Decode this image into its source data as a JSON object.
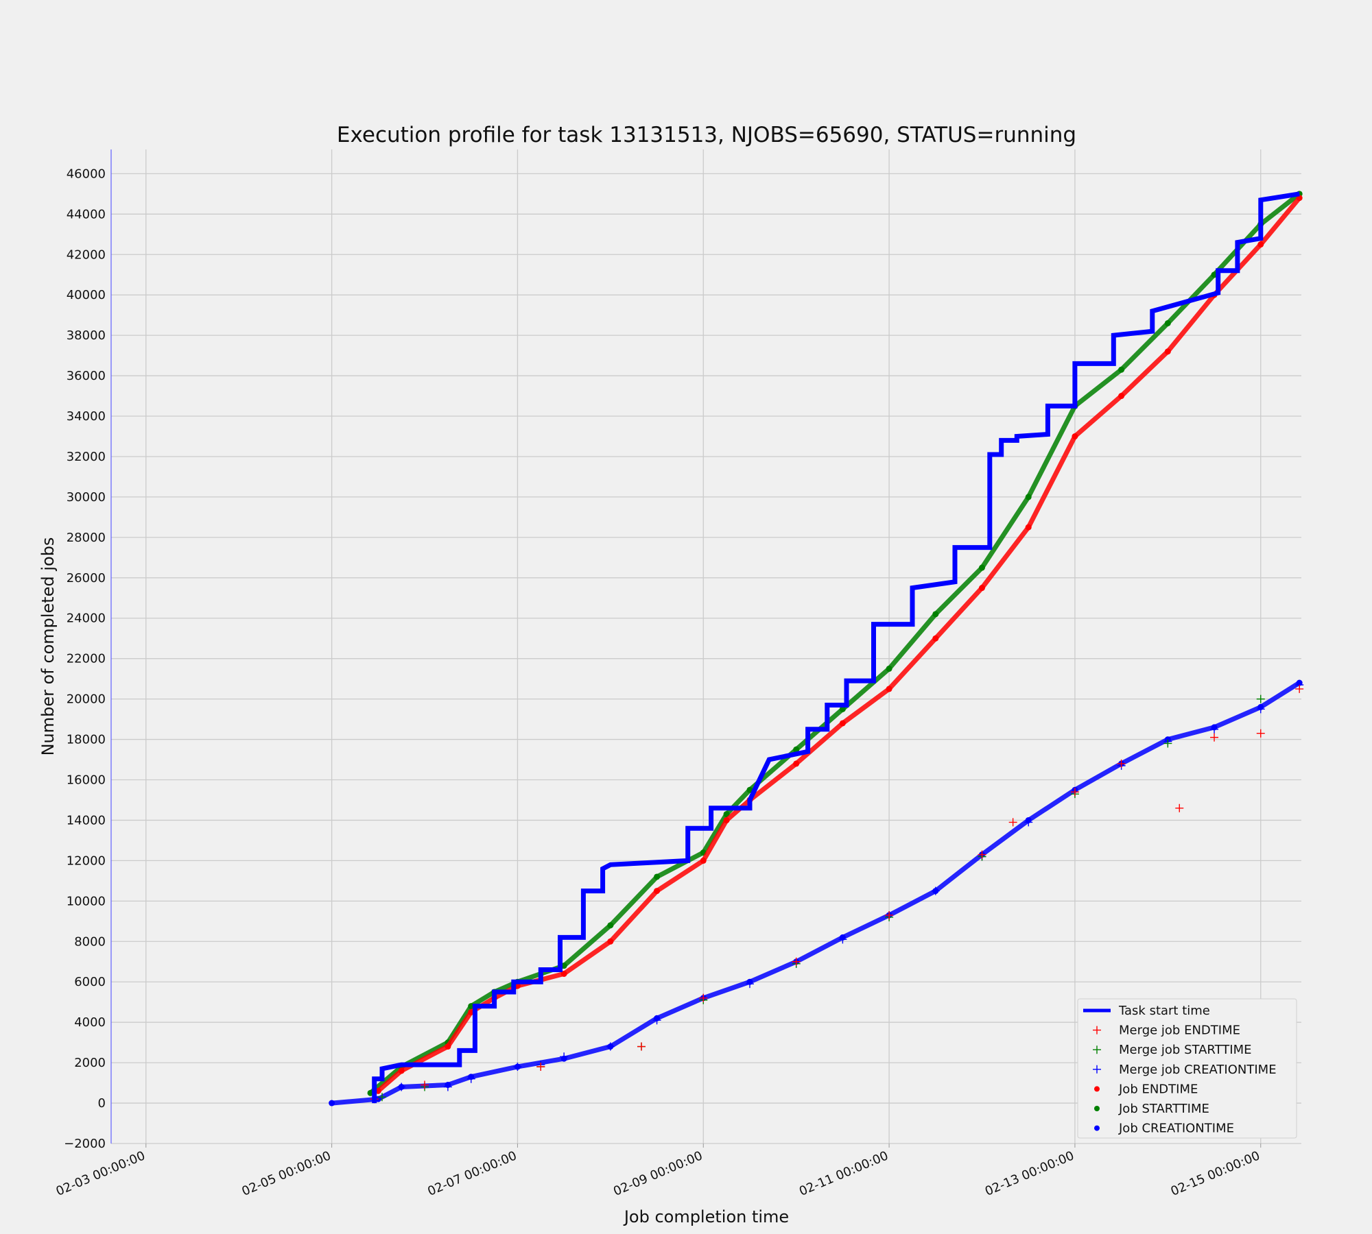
{
  "chart_data": {
    "type": "scatter",
    "title": "Execution profile for task 13131513, NJOBS=65690, STATUS=running",
    "xlabel": "Job completion time",
    "ylabel": "Number of completed jobs",
    "x_axis_type": "date",
    "xlim": [
      "2019-02-02 15:00",
      "2019-02-15 10:30"
    ],
    "ylim": [
      -2000,
      47200
    ],
    "grid": true,
    "legend_position": "bottom-right",
    "x_ticks": [
      "02-03 00:00:00",
      "02-05 00:00:00",
      "02-07 00:00:00",
      "02-09 00:00:00",
      "02-11 00:00:00",
      "02-13 00:00:00",
      "02-15 00:00:00"
    ],
    "y_ticks": [
      -2000,
      0,
      2000,
      4000,
      6000,
      8000,
      10000,
      12000,
      14000,
      16000,
      18000,
      20000,
      22000,
      24000,
      26000,
      28000,
      30000,
      32000,
      34000,
      36000,
      38000,
      40000,
      42000,
      44000,
      46000
    ],
    "colors": {
      "blue": "#0000ff",
      "red": "#ff0000",
      "green": "#008000"
    },
    "legend": [
      "Task start time",
      "Merge job ENDTIME",
      "Merge job STARTTIME",
      "Merge job CREATIONTIME",
      "Job ENDTIME",
      "Job STARTTIME",
      "Job CREATIONTIME"
    ],
    "series": [
      {
        "name": "Task start time",
        "style": "line",
        "color": "#0000ff",
        "x": [
          "2019-02-05 11:00",
          "2019-02-05 11:00",
          "2019-02-05 13:00",
          "2019-02-05 13:00",
          "2019-02-05 18:00",
          "2019-02-06 09:00",
          "2019-02-06 09:00",
          "2019-02-06 13:00",
          "2019-02-06 13:00",
          "2019-02-06 18:00",
          "2019-02-06 18:00",
          "2019-02-06 23:00",
          "2019-02-06 23:00",
          "2019-02-07 06:00",
          "2019-02-07 06:00",
          "2019-02-07 11:00",
          "2019-02-07 11:00",
          "2019-02-07 17:00",
          "2019-02-07 17:00",
          "2019-02-07 22:00",
          "2019-02-07 22:00",
          "2019-02-08 00:00",
          "2019-02-08 20:00",
          "2019-02-08 20:00",
          "2019-02-09 02:00",
          "2019-02-09 02:00",
          "2019-02-09 12:00",
          "2019-02-09 12:00",
          "2019-02-09 17:00",
          "2019-02-10 03:00",
          "2019-02-10 03:00",
          "2019-02-10 08:00",
          "2019-02-10 08:00",
          "2019-02-10 13:00",
          "2019-02-10 13:00",
          "2019-02-10 20:00",
          "2019-02-10 20:00",
          "2019-02-11 06:00",
          "2019-02-11 06:00",
          "2019-02-11 17:00",
          "2019-02-11 17:00",
          "2019-02-12 02:00",
          "2019-02-12 02:00",
          "2019-02-12 05:00",
          "2019-02-12 05:00",
          "2019-02-12 09:00",
          "2019-02-12 09:00",
          "2019-02-12 17:00",
          "2019-02-12 17:00",
          "2019-02-13 00:00",
          "2019-02-13 00:00",
          "2019-02-13 10:00",
          "2019-02-13 10:00",
          "2019-02-13 20:00",
          "2019-02-13 20:00",
          "2019-02-14 13:00",
          "2019-02-14 13:00",
          "2019-02-14 18:00",
          "2019-02-14 18:00",
          "2019-02-15 00:00",
          "2019-02-15 00:00",
          "2019-02-15 10:00"
        ],
        "y": [
          0,
          1200,
          1200,
          1700,
          1900,
          1900,
          2600,
          2600,
          4800,
          4800,
          5500,
          5500,
          6000,
          6000,
          6600,
          6600,
          8200,
          8200,
          10500,
          10500,
          11600,
          11800,
          12000,
          13600,
          13600,
          14600,
          14600,
          15000,
          17000,
          17400,
          18500,
          18500,
          19700,
          19700,
          20900,
          20900,
          23700,
          23700,
          25500,
          25800,
          27500,
          27500,
          32100,
          32100,
          32800,
          32800,
          33000,
          33100,
          34500,
          34500,
          36600,
          36600,
          38000,
          38200,
          39200,
          40100,
          41200,
          41200,
          42600,
          42800,
          44700,
          45000
        ]
      },
      {
        "name": "Merge job ENDTIME",
        "style": "plus",
        "color": "#ff0000",
        "x": [
          "2019-02-05 11:00",
          "2019-02-06 00:00",
          "2019-02-07 06:00",
          "2019-02-08 08:00",
          "2019-02-09 00:00",
          "2019-02-10 00:00",
          "2019-02-11 00:00",
          "2019-02-12 00:00",
          "2019-02-12 08:00",
          "2019-02-13 00:00",
          "2019-02-13 12:00",
          "2019-02-14 03:00",
          "2019-02-14 12:00",
          "2019-02-15 00:00",
          "2019-02-15 10:00"
        ],
        "y": [
          200,
          900,
          1800,
          2800,
          5200,
          7000,
          9300,
          12300,
          13900,
          15400,
          16800,
          14600,
          18100,
          18300,
          20500
        ]
      },
      {
        "name": "Merge job STARTTIME",
        "style": "plus",
        "color": "#008000",
        "x": [
          "2019-02-05 13:00",
          "2019-02-06 00:00",
          "2019-02-07 06:00",
          "2019-02-08 08:00",
          "2019-02-09 00:00",
          "2019-02-10 00:00",
          "2019-02-11 00:00",
          "2019-02-12 00:00",
          "2019-02-13 00:00",
          "2019-02-14 00:00",
          "2019-02-15 00:00"
        ],
        "y": [
          300,
          800,
          1800,
          2800,
          5100,
          6900,
          9200,
          12200,
          15300,
          17800,
          20000
        ]
      },
      {
        "name": "Merge job CREATIONTIME",
        "style": "plus",
        "color": "#0000ff",
        "x": [
          "2019-02-05 11:00",
          "2019-02-05 18:00",
          "2019-02-06 06:00",
          "2019-02-06 12:00",
          "2019-02-07 00:00",
          "2019-02-07 06:00",
          "2019-02-07 12:00",
          "2019-02-08 00:00",
          "2019-02-08 12:00",
          "2019-02-09 00:00",
          "2019-02-09 12:00",
          "2019-02-10 00:00",
          "2019-02-10 12:00",
          "2019-02-11 00:00",
          "2019-02-11 12:00",
          "2019-02-12 00:00",
          "2019-02-12 12:00",
          "2019-02-13 00:00",
          "2019-02-13 12:00",
          "2019-02-14 00:00",
          "2019-02-14 12:00",
          "2019-02-15 00:00",
          "2019-02-15 10:00"
        ],
        "y": [
          200,
          800,
          800,
          1200,
          1800,
          1900,
          2300,
          2800,
          4100,
          5200,
          5900,
          6900,
          8100,
          9300,
          10500,
          12200,
          13900,
          15400,
          16700,
          17900,
          18500,
          19500,
          20700
        ]
      },
      {
        "name": "Job ENDTIME",
        "style": "dot",
        "color": "#ff0000",
        "x": [
          "2019-02-05 12:00",
          "2019-02-05 18:00",
          "2019-02-06 06:00",
          "2019-02-06 12:00",
          "2019-02-06 18:00",
          "2019-02-07 00:00",
          "2019-02-07 12:00",
          "2019-02-08 00:00",
          "2019-02-08 12:00",
          "2019-02-09 00:00",
          "2019-02-09 06:00",
          "2019-02-09 12:00",
          "2019-02-10 00:00",
          "2019-02-10 12:00",
          "2019-02-11 00:00",
          "2019-02-11 12:00",
          "2019-02-12 00:00",
          "2019-02-12 12:00",
          "2019-02-13 00:00",
          "2019-02-13 12:00",
          "2019-02-14 00:00",
          "2019-02-14 12:00",
          "2019-02-15 00:00",
          "2019-02-15 10:00"
        ],
        "y": [
          600,
          1600,
          2800,
          4500,
          5200,
          5800,
          6400,
          8000,
          10500,
          12000,
          14000,
          15000,
          16800,
          18800,
          20500,
          23000,
          25500,
          28500,
          33000,
          35000,
          37200,
          40000,
          42500,
          44800
        ]
      },
      {
        "name": "Job STARTTIME",
        "style": "dot",
        "color": "#008000",
        "x": [
          "2019-02-05 10:00",
          "2019-02-05 18:00",
          "2019-02-06 06:00",
          "2019-02-06 12:00",
          "2019-02-06 18:00",
          "2019-02-07 00:00",
          "2019-02-07 12:00",
          "2019-02-08 00:00",
          "2019-02-08 12:00",
          "2019-02-09 00:00",
          "2019-02-09 06:00",
          "2019-02-09 12:00",
          "2019-02-10 00:00",
          "2019-02-10 12:00",
          "2019-02-11 00:00",
          "2019-02-11 12:00",
          "2019-02-12 00:00",
          "2019-02-12 12:00",
          "2019-02-13 00:00",
          "2019-02-13 12:00",
          "2019-02-14 00:00",
          "2019-02-14 12:00",
          "2019-02-15 00:00",
          "2019-02-15 10:00"
        ],
        "y": [
          500,
          1800,
          3000,
          4800,
          5500,
          6000,
          6800,
          8800,
          11200,
          12400,
          14300,
          15500,
          17500,
          19500,
          21500,
          24200,
          26500,
          30000,
          34500,
          36300,
          38600,
          41000,
          43500,
          45000
        ]
      },
      {
        "name": "Job CREATIONTIME",
        "style": "dot",
        "color": "#0000ff",
        "x": [
          "2019-02-05 00:00",
          "2019-02-05 12:00",
          "2019-02-05 18:00",
          "2019-02-06 06:00",
          "2019-02-06 12:00",
          "2019-02-07 00:00",
          "2019-02-07 12:00",
          "2019-02-08 00:00",
          "2019-02-08 12:00",
          "2019-02-09 00:00",
          "2019-02-09 12:00",
          "2019-02-10 00:00",
          "2019-02-10 12:00",
          "2019-02-11 00:00",
          "2019-02-11 12:00",
          "2019-02-12 00:00",
          "2019-02-12 12:00",
          "2019-02-13 00:00",
          "2019-02-13 12:00",
          "2019-02-14 00:00",
          "2019-02-14 12:00",
          "2019-02-15 00:00",
          "2019-02-15 10:00"
        ],
        "y": [
          0,
          200,
          800,
          900,
          1300,
          1800,
          2200,
          2800,
          4200,
          5200,
          6000,
          7000,
          8200,
          9300,
          10500,
          12300,
          14000,
          15500,
          16800,
          18000,
          18600,
          19600,
          20800
        ]
      }
    ]
  }
}
